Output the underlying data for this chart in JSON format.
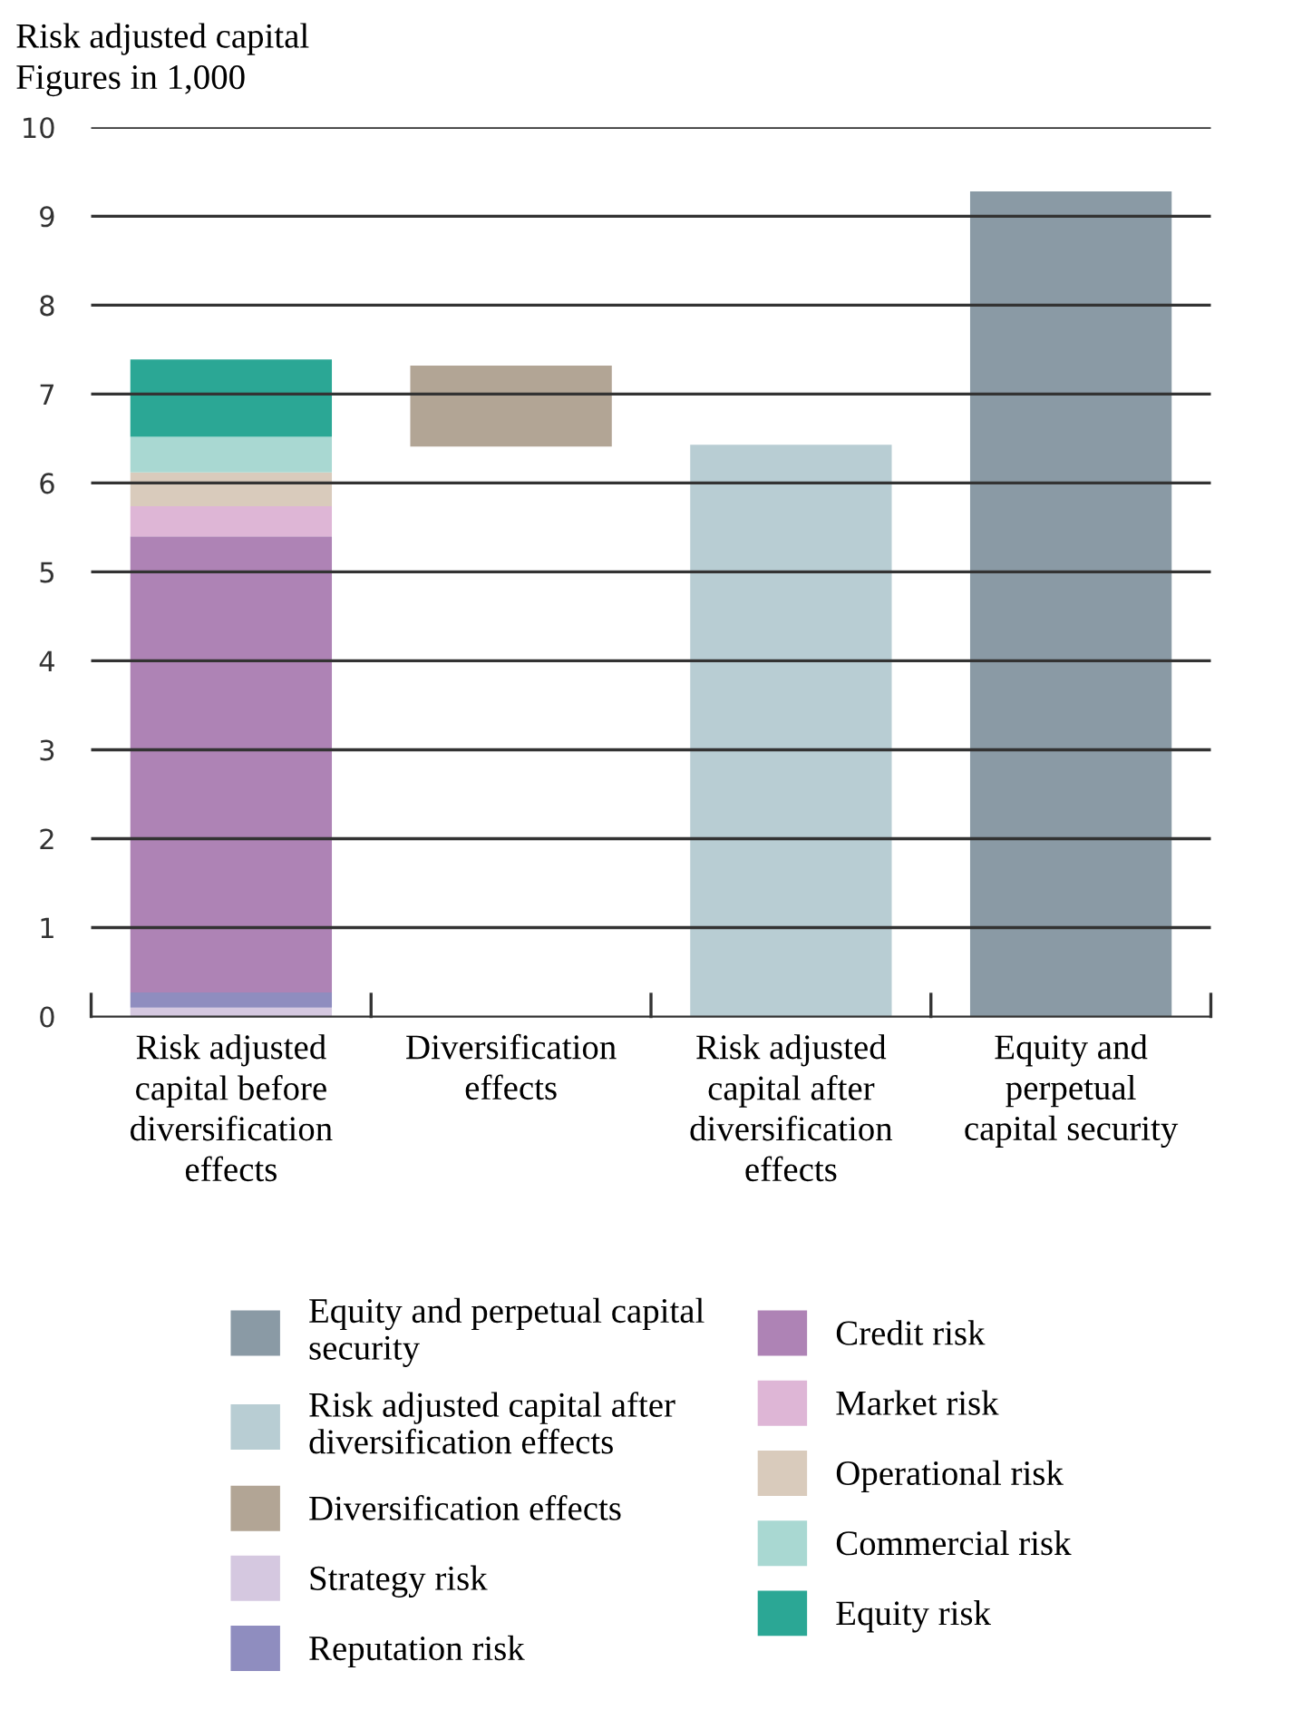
{
  "chart_data": {
    "type": "bar",
    "title": "Risk adjusted capital",
    "subtitle": "Figures in 1,000",
    "categories": [
      "Risk adjusted capital before diversification effects",
      "Diversification effects",
      "Risk adjusted capital after diversification effects",
      "Equity and perpetual capital security"
    ],
    "stacked": true,
    "ylim": [
      0,
      10
    ],
    "yticks": [
      0,
      1,
      2,
      3,
      4,
      5,
      6,
      7,
      8,
      9,
      10
    ],
    "grid": "y",
    "legend": "bottom",
    "series": [
      {
        "name": "Equity and perpetual capital security",
        "color": "#8a9aa5",
        "values": [
          null,
          null,
          null,
          9.28
        ]
      },
      {
        "name": "Risk adjusted capital after diversification effects",
        "color": "#b8cdd3",
        "values": [
          null,
          null,
          6.43,
          null
        ]
      },
      {
        "name": "Diversification effects",
        "color": "#b2a595",
        "values": [
          null,
          0.91,
          null,
          null
        ],
        "base": [
          null,
          6.41,
          null,
          null
        ]
      },
      {
        "name": "Strategy risk",
        "color": "#d5c8e0",
        "values": [
          0.1,
          null,
          null,
          null
        ]
      },
      {
        "name": "Reputation risk",
        "color": "#8f8dbf",
        "values": [
          0.17,
          null,
          null,
          null
        ]
      },
      {
        "name": "Credit risk",
        "color": "#ae83b5",
        "values": [
          5.13,
          null,
          null,
          null
        ]
      },
      {
        "name": "Market risk",
        "color": "#deb6d6",
        "values": [
          0.34,
          null,
          null,
          null
        ]
      },
      {
        "name": "Operational risk",
        "color": "#d9cbbc",
        "values": [
          0.38,
          null,
          null,
          null
        ]
      },
      {
        "name": "Commercial risk",
        "color": "#a9d8d2",
        "values": [
          0.4,
          null,
          null,
          null
        ]
      },
      {
        "name": "Equity risk",
        "color": "#2ba795",
        "values": [
          0.87,
          null,
          null,
          null
        ]
      }
    ]
  }
}
